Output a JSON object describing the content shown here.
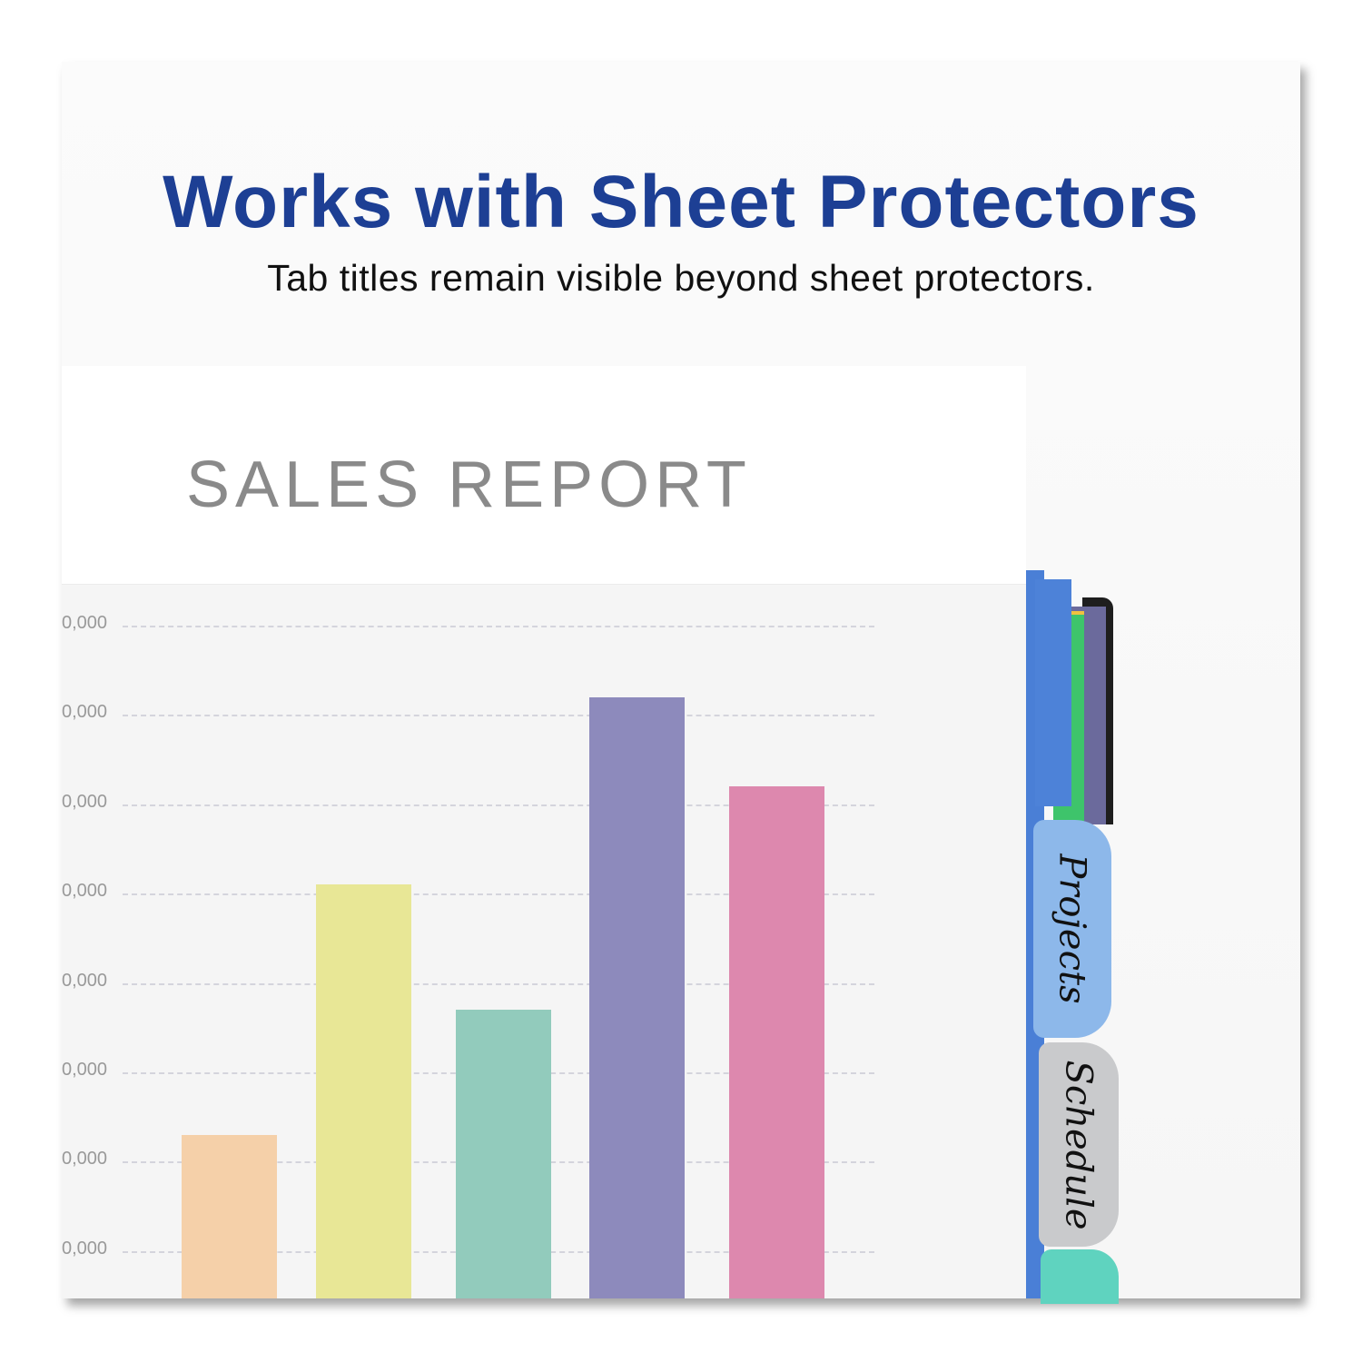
{
  "headline": "Works with Sheet Protectors",
  "subheadline": "Tab titles remain visible beyond sheet protectors.",
  "sheet": {
    "title": "SALES REPORT"
  },
  "chart_data": {
    "type": "bar",
    "title": "SALES REPORT",
    "tick_labels": [
      "0,000",
      "0,000",
      "0,000",
      "0,000",
      "0,000",
      "0,000",
      "0,000",
      "0,000"
    ],
    "note_values_unit": "gridline steps above lowest visible gridline",
    "values": [
      1.3,
      4.1,
      2.7,
      6.2,
      5.2
    ],
    "colors": [
      "#f5d0a9",
      "#e8e796",
      "#92cbbc",
      "#8d8abc",
      "#dd88ae"
    ],
    "grid": true
  },
  "tabs": [
    {
      "label": "Projects",
      "color": "#8db8ea"
    },
    {
      "label": "Schedule",
      "color": "#c9cacc"
    },
    {
      "label": "",
      "color": "#5fd3bf"
    }
  ],
  "colors": {
    "headline": "#1d3f94"
  }
}
